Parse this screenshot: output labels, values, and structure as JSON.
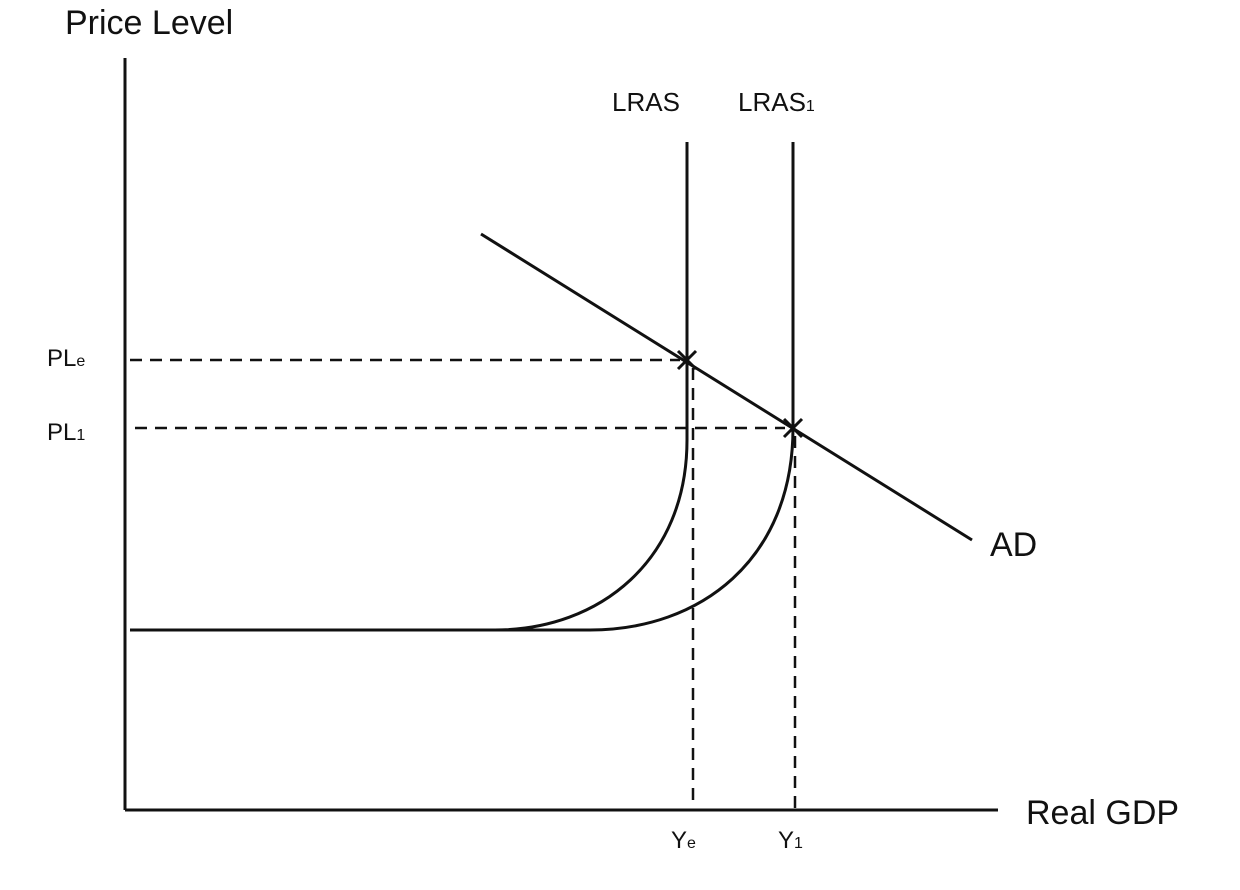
{
  "axes": {
    "y_title": "Price Level",
    "x_title": "Real GDP"
  },
  "curves": {
    "lras": "LRAS",
    "lras1_base": "LRAS",
    "lras1_sub": "1",
    "ad": "AD"
  },
  "ticks": {
    "ple_base": "PL",
    "ple_sub": "e",
    "pl1_base": "PL",
    "pl1_sub": "1",
    "ye_base": "Y",
    "ye_sub": "e",
    "y1_base": "Y",
    "y1_sub": "1"
  }
}
